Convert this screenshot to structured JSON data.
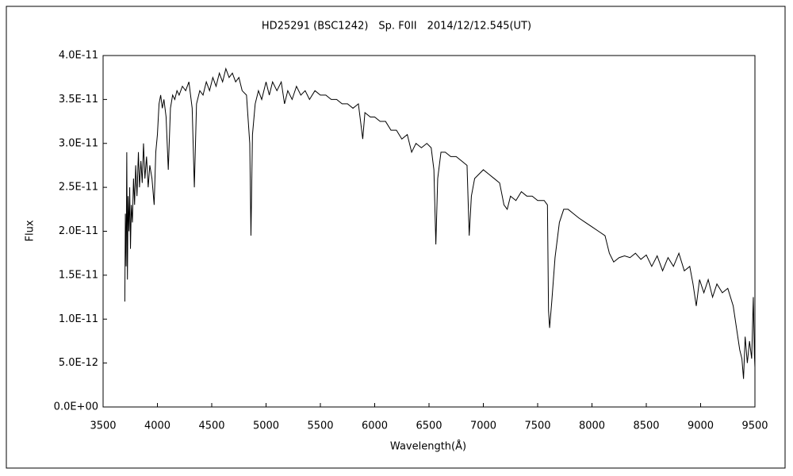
{
  "chart_data": {
    "type": "line",
    "title": "HD25291 (BSC1242)　Sp. F0II　2014/12/12.545(UT)",
    "xlabel": "Wavelength(Å)",
    "ylabel": "Flux",
    "xlim": [
      3500,
      9500
    ],
    "xticks": [
      3500,
      4000,
      4500,
      5000,
      5500,
      6000,
      6500,
      7000,
      7500,
      8000,
      8500,
      9000,
      9500
    ],
    "ylim": [
      0,
      4e-11
    ],
    "yticks": [
      {
        "value": 0,
        "label": "0.0E+00"
      },
      {
        "value": 5e-12,
        "label": "5.0E-12"
      },
      {
        "value": 1e-11,
        "label": "1.0E-11"
      },
      {
        "value": 1.5e-11,
        "label": "1.5E-11"
      },
      {
        "value": 2e-11,
        "label": "2.0E-11"
      },
      {
        "value": 2.5e-11,
        "label": "2.5E-11"
      },
      {
        "value": 3e-11,
        "label": "3.0E-11"
      },
      {
        "value": 3.5e-11,
        "label": "3.5E-11"
      },
      {
        "value": 4e-11,
        "label": "4.0E-11"
      }
    ],
    "grid": false,
    "color": "#000000",
    "x": [
      3700,
      3705,
      3712,
      3718,
      3724,
      3730,
      3738,
      3745,
      3752,
      3760,
      3770,
      3780,
      3790,
      3800,
      3812,
      3825,
      3835,
      3848,
      3860,
      3872,
      3885,
      3900,
      3915,
      3930,
      3950,
      3970,
      3985,
      4000,
      4015,
      4030,
      4045,
      4060,
      4080,
      4100,
      4120,
      4140,
      4160,
      4180,
      4200,
      4230,
      4260,
      4290,
      4320,
      4340,
      4360,
      4390,
      4420,
      4450,
      4480,
      4510,
      4540,
      4570,
      4600,
      4630,
      4660,
      4690,
      4720,
      4750,
      4780,
      4820,
      4850,
      4861,
      4875,
      4900,
      4930,
      4960,
      5000,
      5030,
      5060,
      5100,
      5140,
      5170,
      5200,
      5240,
      5280,
      5320,
      5360,
      5400,
      5450,
      5500,
      5550,
      5600,
      5650,
      5700,
      5750,
      5800,
      5850,
      5890,
      5910,
      5960,
      6000,
      6050,
      6100,
      6150,
      6200,
      6250,
      6300,
      6340,
      6380,
      6430,
      6480,
      6520,
      6545,
      6563,
      6580,
      6610,
      6650,
      6700,
      6750,
      6800,
      6850,
      6870,
      6890,
      6920,
      6960,
      7000,
      7050,
      7100,
      7150,
      7190,
      7220,
      7250,
      7300,
      7350,
      7400,
      7450,
      7500,
      7560,
      7590,
      7600,
      7610,
      7630,
      7660,
      7700,
      7740,
      7780,
      7830,
      7880,
      7940,
      8000,
      8060,
      8120,
      8160,
      8200,
      8250,
      8300,
      8350,
      8400,
      8450,
      8500,
      8550,
      8600,
      8650,
      8700,
      8750,
      8800,
      8850,
      8900,
      8930,
      8960,
      8990,
      9030,
      9070,
      9110,
      9150,
      9200,
      9250,
      9300,
      9330,
      9360,
      9380,
      9395,
      9410,
      9430,
      9450,
      9470,
      9485,
      9495,
      9500
    ],
    "values": [
      1.2e-11,
      2.2e-11,
      1.6e-11,
      2.9e-11,
      1.45e-11,
      2.4e-11,
      2e-11,
      2.5e-11,
      1.8e-11,
      2.3e-11,
      2.1e-11,
      2.6e-11,
      2.3e-11,
      2.75e-11,
      2.4e-11,
      2.9e-11,
      2.5e-11,
      2.8e-11,
      2.55e-11,
      3e-11,
      2.6e-11,
      2.85e-11,
      2.5e-11,
      2.75e-11,
      2.6e-11,
      2.3e-11,
      2.9e-11,
      3.1e-11,
      3.45e-11,
      3.55e-11,
      3.4e-11,
      3.5e-11,
      3.3e-11,
      2.7e-11,
      3.4e-11,
      3.55e-11,
      3.5e-11,
      3.6e-11,
      3.55e-11,
      3.65e-11,
      3.6e-11,
      3.7e-11,
      3.4e-11,
      2.5e-11,
      3.45e-11,
      3.6e-11,
      3.55e-11,
      3.7e-11,
      3.6e-11,
      3.75e-11,
      3.65e-11,
      3.8e-11,
      3.7e-11,
      3.85e-11,
      3.75e-11,
      3.8e-11,
      3.7e-11,
      3.75e-11,
      3.6e-11,
      3.55e-11,
      3e-11,
      1.95e-11,
      3.1e-11,
      3.45e-11,
      3.6e-11,
      3.5e-11,
      3.7e-11,
      3.55e-11,
      3.7e-11,
      3.6e-11,
      3.7e-11,
      3.45e-11,
      3.6e-11,
      3.5e-11,
      3.65e-11,
      3.55e-11,
      3.6e-11,
      3.5e-11,
      3.6e-11,
      3.55e-11,
      3.55e-11,
      3.5e-11,
      3.5e-11,
      3.45e-11,
      3.45e-11,
      3.4e-11,
      3.45e-11,
      3.05e-11,
      3.35e-11,
      3.3e-11,
      3.3e-11,
      3.25e-11,
      3.25e-11,
      3.15e-11,
      3.15e-11,
      3.05e-11,
      3.1e-11,
      2.9e-11,
      3e-11,
      2.95e-11,
      3e-11,
      2.95e-11,
      2.7e-11,
      1.85e-11,
      2.6e-11,
      2.9e-11,
      2.9e-11,
      2.85e-11,
      2.85e-11,
      2.8e-11,
      2.75e-11,
      1.95e-11,
      2.4e-11,
      2.6e-11,
      2.65e-11,
      2.7e-11,
      2.65e-11,
      2.6e-11,
      2.55e-11,
      2.3e-11,
      2.25e-11,
      2.4e-11,
      2.35e-11,
      2.45e-11,
      2.4e-11,
      2.4e-11,
      2.35e-11,
      2.35e-11,
      2.3e-11,
      1.1e-11,
      9e-12,
      1.2e-11,
      1.7e-11,
      2.1e-11,
      2.25e-11,
      2.25e-11,
      2.2e-11,
      2.15e-11,
      2.1e-11,
      2.05e-11,
      2e-11,
      1.95e-11,
      1.75e-11,
      1.65e-11,
      1.7e-11,
      1.72e-11,
      1.7e-11,
      1.75e-11,
      1.68e-11,
      1.73e-11,
      1.6e-11,
      1.72e-11,
      1.55e-11,
      1.7e-11,
      1.6e-11,
      1.75e-11,
      1.55e-11,
      1.6e-11,
      1.4e-11,
      1.15e-11,
      1.45e-11,
      1.3e-11,
      1.45e-11,
      1.25e-11,
      1.4e-11,
      1.3e-11,
      1.35e-11,
      1.15e-11,
      9e-12,
      6.5e-12,
      5.5e-12,
      3.2e-12,
      8e-12,
      5e-12,
      7.5e-12,
      5.5e-12,
      1.25e-11,
      6e-12,
      4.5e-12
    ]
  }
}
